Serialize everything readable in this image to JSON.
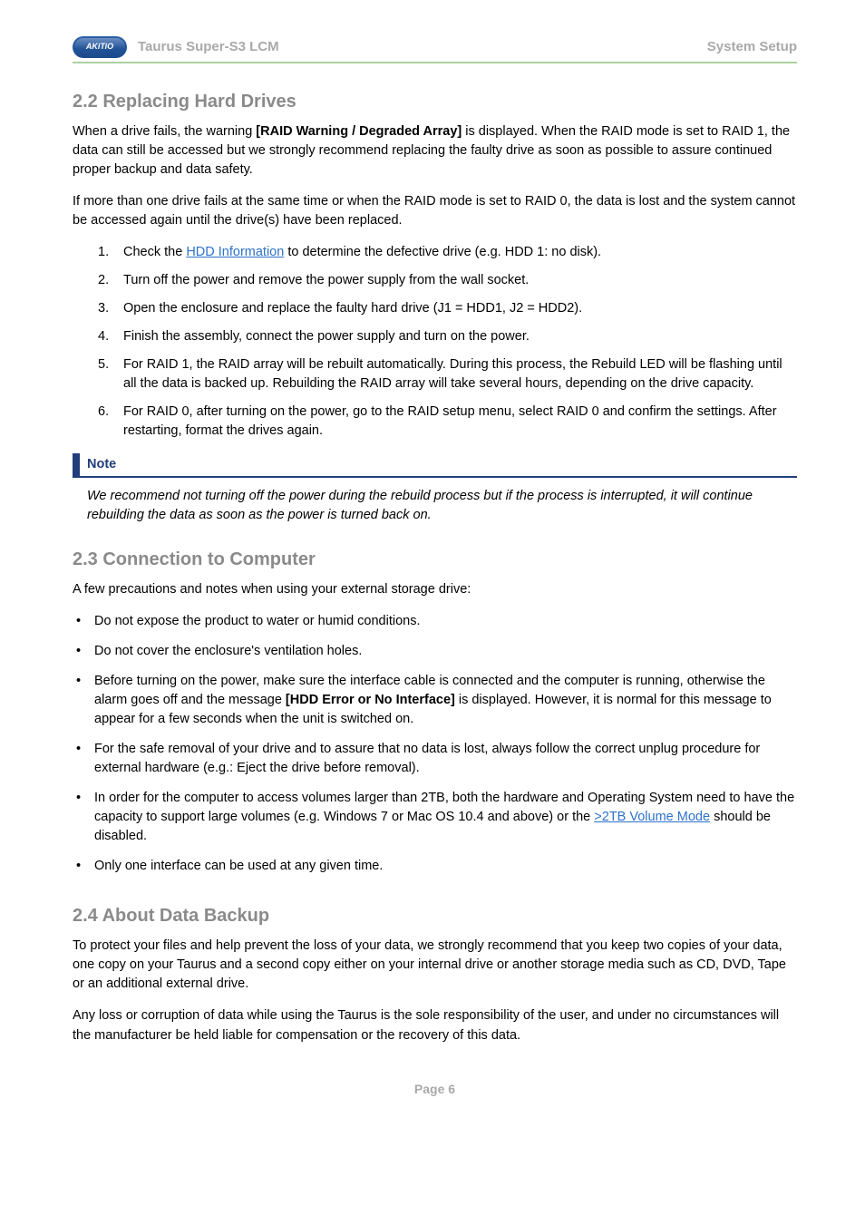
{
  "header": {
    "logo_text": "AKiTiO",
    "title": "Taurus Super-S3 LCM",
    "section": "System Setup"
  },
  "colors": {
    "heading_gray": "#8a8a8a",
    "header_text_gray": "#a9a9a9",
    "rule_green": "#acd1a3",
    "dot_green": "#6fb05f",
    "link_blue": "#2e72c9",
    "note_blue": "#1f3e7a",
    "body_text": "#000000",
    "background": "#ffffff"
  },
  "s22": {
    "heading": "2.2  Replacing Hard Drives",
    "p1_a": "When a drive fails, the warning ",
    "p1_bold": "[RAID Warning / Degraded Array]",
    "p1_b": " is displayed. When the RAID mode is set to RAID 1, the data can still be accessed but we strongly recommend replacing the faulty drive as soon as possible to assure continued proper backup and data safety.",
    "p2": "If more than one drive fails at the same time or when the RAID mode is set to RAID 0, the data is lost and the system cannot be accessed again until the drive(s) have been replaced.",
    "steps": [
      {
        "num": "1.",
        "pre": "Check the ",
        "link": "HDD Information",
        "post": " to determine the defective drive (e.g. HDD 1:  no disk)."
      },
      {
        "num": "2.",
        "text": "Turn off the power and remove the power supply from the wall socket."
      },
      {
        "num": "3.",
        "text": "Open the enclosure and replace the faulty hard drive (J1 = HDD1, J2 = HDD2)."
      },
      {
        "num": "4.",
        "text": "Finish the assembly, connect the power supply and turn on the power."
      },
      {
        "num": "5.",
        "text": "For RAID 1, the RAID array will be rebuilt automatically. During this process, the Rebuild LED will be flashing until all the data is backed up. Rebuilding the RAID array will take several hours, depending on the drive capacity."
      },
      {
        "num": "6.",
        "text": "For RAID 0, after turning on the power, go to the RAID setup menu, select RAID 0 and confirm the settings. After restarting, format the drives again."
      }
    ],
    "note_label": "Note",
    "note_body": "We recommend not turning off the power during the rebuild process but if the process is interrupted, it will continue rebuilding the data as soon as the power is turned back on."
  },
  "s23": {
    "heading": "2.3  Connection to Computer",
    "intro": "A few precautions and notes when using your external storage drive:",
    "bullets": {
      "b1": "Do not expose the product to water or humid conditions.",
      "b2": "Do not cover the enclosure's ventilation holes.",
      "b3_a": "Before turning on the power, make sure the interface cable is connected and the computer is running, otherwise the alarm goes off and the message ",
      "b3_bold": "[HDD Error or No Interface]",
      "b3_b": " is displayed. However, it is normal for this message to appear for a few seconds when the unit is switched on.",
      "b4": "For the safe removal of your drive and to assure that no data is lost, always follow the correct unplug procedure for external hardware (e.g.: Eject the drive before removal).",
      "b5_a": "In order for the computer to access volumes larger than 2TB, both the hardware and Operating System need to have the capacity to support large volumes (e.g. Windows 7 or Mac OS 10.4 and above) or the ",
      "b5_link": ">2TB Volume Mode",
      "b5_b": " should be disabled.",
      "b6": "Only one interface can be used at any given time."
    }
  },
  "s24": {
    "heading": "2.4  About Data Backup",
    "p1": "To protect your files and help prevent the loss of your data, we strongly recommend that you keep two copies of your data, one copy on your Taurus and a second copy either on your internal drive or another storage media such as CD, DVD, Tape or an additional external drive.",
    "p2": "Any loss or corruption of data while using the Taurus is the sole responsibility of the user, and under no circumstances will the manufacturer be held liable for compensation or the recovery of this data."
  },
  "footer": {
    "text": "Page 6"
  }
}
